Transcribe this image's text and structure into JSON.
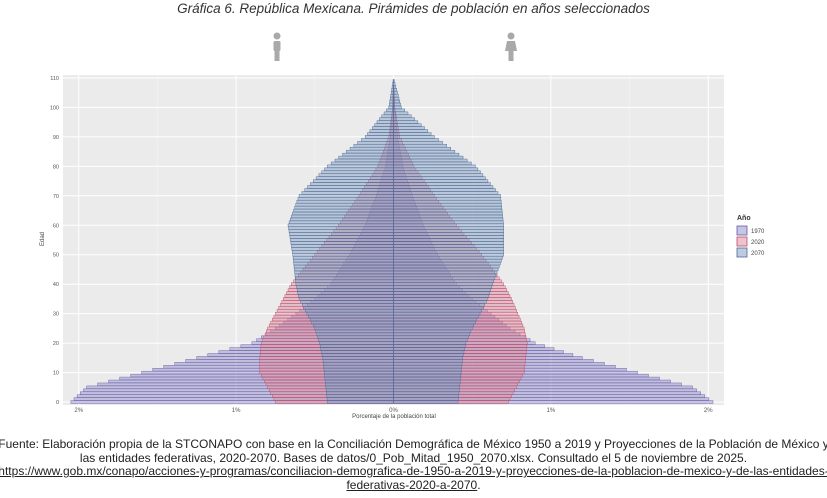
{
  "title": "Gráfica 6. República Mexicana. Pirámides de población en años seleccionados",
  "source": {
    "text": "Fuente: Elaboración propia de la STCONAPO con base en la Conciliación Demográfica de México 1950 a 2019 y Proyecciones de la Población de México y las entidades federativas, 2020-2070. Bases de datos/0_Pob_Mitad_1950_2070.xlsx. Consultado el 5 de noviembre de 2025. ",
    "link": "https://www.gob.mx/conapo/acciones-y-programas/conciliacion-demografica-de-1950-a-2019-y-proyecciones-de-la-poblacion-de-mexico-y-de-las-entidades-federativas-2020-a-2070",
    "end": "."
  },
  "colors": {
    "y1970": "#8c8ccc",
    "y2020": "#d88a9e",
    "y2070": "#7c98c0",
    "panel": "#ebebeb",
    "grid": "#ffffff"
  },
  "icons": {
    "male": "man-icon",
    "female": "woman-icon"
  },
  "chart_data": {
    "type": "bar",
    "orientation": "horizontal-pyramid",
    "xlabel": "Porcentaje de la población total",
    "ylabel": "Edad",
    "xlim": [
      -2.1,
      2.1
    ],
    "ylim": [
      -1,
      111
    ],
    "x_ticks": [
      -2,
      -1,
      0,
      1,
      2
    ],
    "x_tick_labels": [
      "2%",
      "1%",
      "0%",
      "1%",
      "2%"
    ],
    "y_ticks": [
      0,
      10,
      20,
      30,
      40,
      50,
      60,
      70,
      80,
      90,
      100,
      110
    ],
    "legend_title": "Año",
    "legend_position": "right",
    "grid": true,
    "series": [
      {
        "name": "1970",
        "ages": [
          0,
          5,
          10,
          15,
          20,
          25,
          30,
          35,
          40,
          50,
          60,
          70,
          80,
          90,
          100,
          110
        ],
        "male": [
          2.05,
          1.95,
          1.6,
          1.25,
          0.9,
          0.75,
          0.62,
          0.5,
          0.4,
          0.28,
          0.18,
          0.11,
          0.05,
          0.02,
          0.006,
          0.0
        ],
        "female": [
          2.03,
          1.9,
          1.55,
          1.2,
          0.9,
          0.74,
          0.62,
          0.5,
          0.4,
          0.28,
          0.19,
          0.12,
          0.06,
          0.025,
          0.008,
          0.0
        ]
      },
      {
        "name": "2020",
        "ages": [
          0,
          5,
          10,
          15,
          20,
          25,
          30,
          35,
          40,
          50,
          60,
          70,
          80,
          90,
          100,
          110
        ],
        "male": [
          0.75,
          0.8,
          0.85,
          0.85,
          0.84,
          0.8,
          0.75,
          0.7,
          0.65,
          0.5,
          0.35,
          0.22,
          0.1,
          0.03,
          0.005,
          0.0
        ],
        "female": [
          0.73,
          0.78,
          0.83,
          0.84,
          0.85,
          0.83,
          0.79,
          0.75,
          0.7,
          0.56,
          0.4,
          0.26,
          0.13,
          0.04,
          0.008,
          0.0
        ]
      },
      {
        "name": "2070",
        "ages": [
          0,
          5,
          10,
          15,
          20,
          25,
          30,
          35,
          40,
          50,
          60,
          70,
          80,
          90,
          100,
          110
        ],
        "male": [
          0.42,
          0.43,
          0.44,
          0.45,
          0.47,
          0.5,
          0.55,
          0.6,
          0.62,
          0.64,
          0.67,
          0.6,
          0.42,
          0.18,
          0.03,
          0.0
        ],
        "female": [
          0.41,
          0.42,
          0.43,
          0.44,
          0.46,
          0.5,
          0.55,
          0.6,
          0.63,
          0.7,
          0.7,
          0.68,
          0.52,
          0.26,
          0.05,
          0.0
        ]
      }
    ]
  }
}
